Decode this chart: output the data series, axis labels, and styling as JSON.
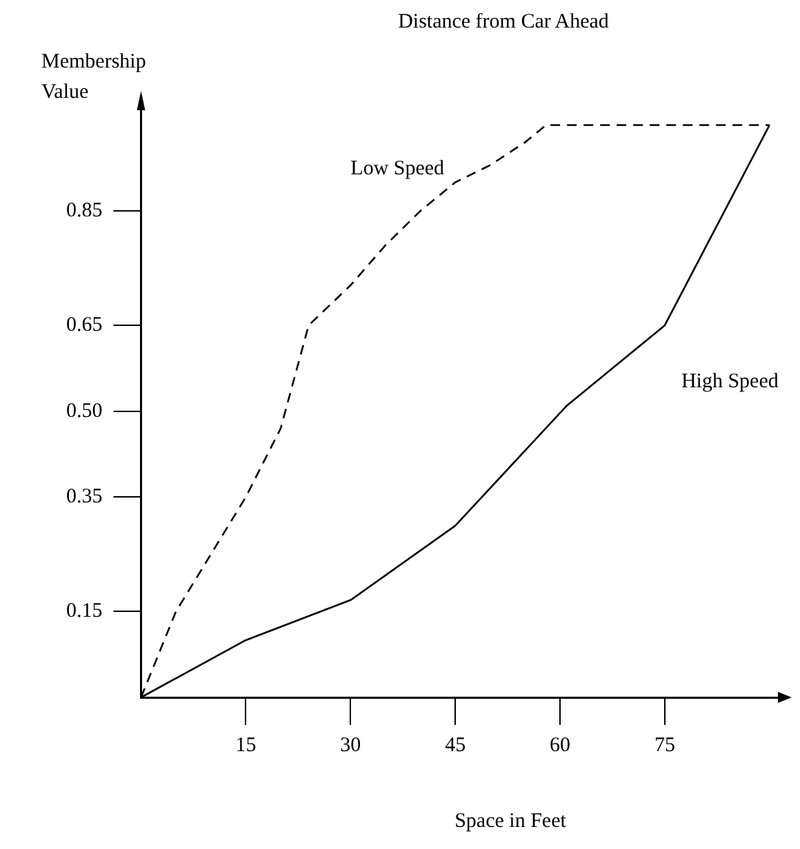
{
  "chart_data": {
    "type": "line",
    "title": "Distance from Car Ahead",
    "xlabel": "Space in Feet",
    "ylabel": "Membership Value",
    "xlim": [
      0,
      92
    ],
    "xticks": [
      15,
      30,
      45,
      60,
      75
    ],
    "ylim": [
      0,
      1.05
    ],
    "yticks": [
      0.15,
      0.35,
      {
        "value": 0.5,
        "label": "0.50"
      },
      0.65,
      0.85
    ],
    "grid": false,
    "legend": false,
    "marker": "none",
    "series": [
      {
        "name": "Low Speed",
        "color": "#000000",
        "line_style": "dashed",
        "x": [
          0,
          5,
          10,
          15,
          20,
          24,
          30,
          35,
          40,
          45,
          50,
          55,
          58,
          90
        ],
        "values": [
          0,
          0.15,
          0.25,
          0.35,
          0.47,
          0.65,
          0.72,
          0.79,
          0.85,
          0.9,
          0.93,
          0.97,
          1.0,
          1.0
        ]
      },
      {
        "name": "High Speed",
        "color": "#000000",
        "line_style": "solid",
        "x": [
          0,
          15,
          30,
          45,
          61,
          75,
          90
        ],
        "values": [
          0,
          0.1,
          0.17,
          0.3,
          0.51,
          0.65,
          1.0
        ]
      }
    ]
  }
}
